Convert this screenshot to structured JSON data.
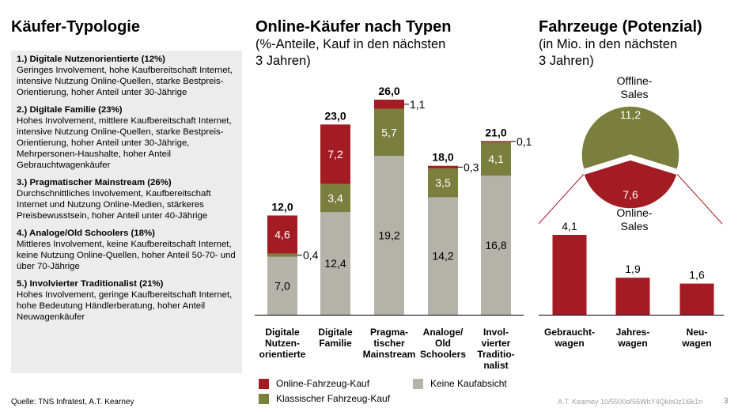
{
  "left": {
    "title": "Käufer-Typologie",
    "types": [
      {
        "title": "1.) Digitale Nutzenorientierte (12%)",
        "desc": "Geringes Involvement, hohe Kaufbereitschaft Internet, intensive Nutzung Online-Quellen, starke Bestpreis-Orientierung, hoher Anteil unter 30-Jährige"
      },
      {
        "title": "2.) Digitale Familie (23%)",
        "desc": "Hohes Involvement, mittlere Kaufbereitschaft Internet, intensive Nutzung Online-Quellen, starke Bestpreis-Orientierung, hoher Anteil unter 30-Jährige, Mehrpersonen-Haushalte, hoher Anteil Gebrauchtwagenkäufer"
      },
      {
        "title": "3.) Pragmatischer Mainstream (26%)",
        "desc": "Durchschnittliches Involvement, Kaufbereitschaft Internet und Nutzung Online-Medien, stärkeres Preisbewusstsein, hoher Anteil unter 40-Jährige"
      },
      {
        "title": "4.) Analoge/Old Schoolers (18%)",
        "desc": "Mittleres Involvement, keine Kaufbereitschaft Internet, keine Nutzung Online-Quellen, hoher Anteil 50-70- und über 70-Jährige"
      },
      {
        "title": "5.) Involvierter Traditionalist (21%)",
        "desc": "Hohes Involvement, geringe Kaufbereitschaft Internet, hohe Bedeutung Händlerberatung, hoher Anteil Neuwagenkäufer"
      }
    ]
  },
  "middle": {
    "title": "Online-Käufer nach Typen",
    "subtitle": "(%-Anteile, Kauf in den nächsten\n3 Jahren)"
  },
  "right": {
    "title": "Fahrzeuge (Potenzial)",
    "subtitle": "(in Mio. in den nächsten\n3 Jahren)"
  },
  "footer": {
    "source": "Quelle: TNS Infratest, A.T. Kearney",
    "ref": "A.T. Kearney 10/5500d/55WbY4Qkln0z1l6k1n",
    "page": "3"
  },
  "colors": {
    "online": "#A31B23",
    "classic": "#7A7F3D",
    "none": "#B5B2AA"
  },
  "chart_data": [
    {
      "type": "bar",
      "stacked": true,
      "categories": [
        "Digitale Nutzen-orientierte",
        "Digitale Familie",
        "Pragma-tischer Mainstream",
        "Analoge/ Old Schoolers",
        "Invol-vierter Traditio-nalist"
      ],
      "category_lines": [
        [
          "Digitale",
          "Nutzen-",
          "orientierte"
        ],
        [
          "Digitale",
          "Familie"
        ],
        [
          "Pragma-",
          "tischer",
          "Mainstream"
        ],
        [
          "Analoge/",
          "Old",
          "Schoolers"
        ],
        [
          "Invol-",
          "vierter",
          "Traditio-",
          "nalist"
        ]
      ],
      "series": [
        {
          "name": "Keine Kaufabsicht",
          "values": [
            7.0,
            12.4,
            19.2,
            14.2,
            16.8
          ],
          "labels": [
            "7,0",
            "12,4",
            "19,2",
            "14,2",
            "16,8"
          ]
        },
        {
          "name": "Klassischer Fahrzeug-Kauf",
          "values": [
            0.4,
            3.4,
            5.7,
            3.5,
            4.1
          ],
          "labels": [
            "0,4",
            "3,4",
            "5,7",
            "3,5",
            "4,1"
          ]
        },
        {
          "name": "Online-Fahrzeug-Kauf",
          "values": [
            4.6,
            7.2,
            1.1,
            0.3,
            0.1
          ],
          "labels": [
            "4,6",
            "7,2",
            "1,1",
            "0,3",
            "0,1"
          ]
        }
      ],
      "totals": [
        "12,0",
        "23,0",
        "26,0",
        "18,0",
        "21,0"
      ],
      "ylim": [
        0,
        26
      ],
      "legend": [
        {
          "name": "Online-Fahrzeug-Kauf",
          "key": "online"
        },
        {
          "name": "Keine Kaufabsicht",
          "key": "none"
        },
        {
          "name": "Klassischer Fahrzeug-Kauf",
          "key": "classic"
        }
      ]
    },
    {
      "type": "pie",
      "slices": [
        {
          "name": "Offline-Sales",
          "value": 11.2,
          "label": "11,2",
          "name_lines": [
            "Offline-",
            "Sales"
          ]
        },
        {
          "name": "Online-Sales",
          "value": 7.6,
          "label": "7,6",
          "name_lines": [
            "Online-",
            "Sales"
          ]
        }
      ]
    },
    {
      "type": "bar",
      "categories": [
        "Gebraucht-wagen",
        "Jahres-wagen",
        "Neu-wagen"
      ],
      "category_lines": [
        [
          "Gebraucht-",
          "wagen"
        ],
        [
          "Jahres-",
          "wagen"
        ],
        [
          "Neu-",
          "wagen"
        ]
      ],
      "values": [
        4.1,
        1.9,
        1.6
      ],
      "labels": [
        "4,1",
        "1,9",
        "1,6"
      ],
      "ylim": [
        0,
        4.1
      ]
    }
  ]
}
